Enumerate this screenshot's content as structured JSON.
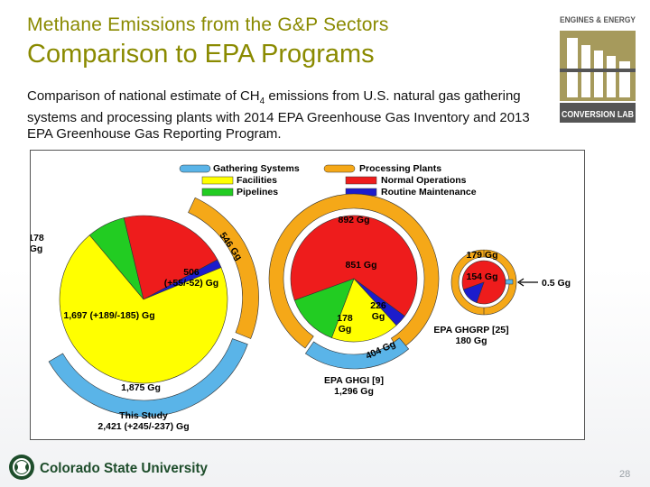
{
  "slide": {
    "kicker": "Methane Emissions from the G&P Sectors",
    "title": "Comparison to EPA Programs",
    "desc_part1": "Comparison of national estimate of CH",
    "desc_sub": "4",
    "desc_part2": " emissions from U.S. natural gas gathering systems and processing plants with 2014 EPA Greenhouse Gas Inventory and 2013 EPA Greenhouse Gas Reporting Program.",
    "page_number": "28"
  },
  "logo": {
    "line1": "ENGINES & ENERGY",
    "line2": "CONVERSION LAB"
  },
  "footer": {
    "university": "Colorado State University"
  },
  "colors": {
    "gathering": "#5ab4e8",
    "processing": "#f5a818",
    "facilities": "#ffff00",
    "pipelines": "#22cc22",
    "normal_operations": "#ee1c1c",
    "routine_maintenance": "#1c1ccc",
    "title_olive": "#8a8a00"
  },
  "chart_data": {
    "type": "pie",
    "units": "Gg",
    "legend": {
      "gathering_systems": "Gathering Systems",
      "facilities": "Facilities",
      "pipelines": "Pipelines",
      "processing_plants": "Processing Plants",
      "normal_operations": "Normal Operations",
      "routine_maintenance": "Routine Maintenance"
    },
    "pies": [
      {
        "name_line1": "This Study",
        "name_line2": "2,421 (+245/-237) Gg",
        "total": 2421,
        "outer_ring": [
          {
            "series": "Gathering Systems",
            "value": 1875,
            "label": "1,875 Gg"
          },
          {
            "series": "Processing Plants",
            "value": 546,
            "label": "546 Gg"
          }
        ],
        "inner_slices": [
          {
            "series": "Pipelines",
            "value": 178,
            "label_line1": "178",
            "label_line2": "Gg"
          },
          {
            "series": "Normal Operations",
            "value": 506,
            "label_line1": "506",
            "label_line2": "(+55/-52) Gg"
          },
          {
            "series": "Routine Maintenance",
            "value": 40,
            "label_line1": "",
            "label_line2": ""
          },
          {
            "series": "Facilities",
            "value": 1697,
            "label_line1": "1,697  (+189/-185)  Gg",
            "label_line2": ""
          }
        ]
      },
      {
        "name_line1": "EPA GHGI [9]",
        "name_line2": "1,296 Gg",
        "total": 1296,
        "outer_ring": [
          {
            "series": "Processing Plants",
            "value": 892,
            "label": "892 Gg"
          },
          {
            "series": "Gathering Systems",
            "value": 404,
            "label": "404 Gg"
          }
        ],
        "inner_slices": [
          {
            "series": "Normal Operations",
            "value": 851,
            "label_line1": "851 Gg",
            "label_line2": ""
          },
          {
            "series": "Routine Maintenance",
            "value": 41,
            "label_line1": "",
            "label_line2": ""
          },
          {
            "series": "Facilities",
            "value": 226,
            "label_line1": "226",
            "label_line2": "Gg"
          },
          {
            "series": "Pipelines",
            "value": 178,
            "label_line1": "178",
            "label_line2": "Gg"
          }
        ]
      },
      {
        "name_line1": "EPA GHGRP [25]",
        "name_line2": "180 Gg",
        "total": 180,
        "outer_ring": [
          {
            "series": "Processing Plants",
            "value": 179,
            "label": "179 Gg"
          },
          {
            "series": "Gathering Systems",
            "value": 0.5,
            "label": "0.5 Gg"
          }
        ],
        "inner_slices": [
          {
            "series": "Normal Operations",
            "value": 154,
            "label_line1": "154 Gg",
            "label_line2": ""
          },
          {
            "series": "Routine Maintenance",
            "value": 25,
            "label_line1": "",
            "label_line2": ""
          }
        ]
      }
    ]
  }
}
